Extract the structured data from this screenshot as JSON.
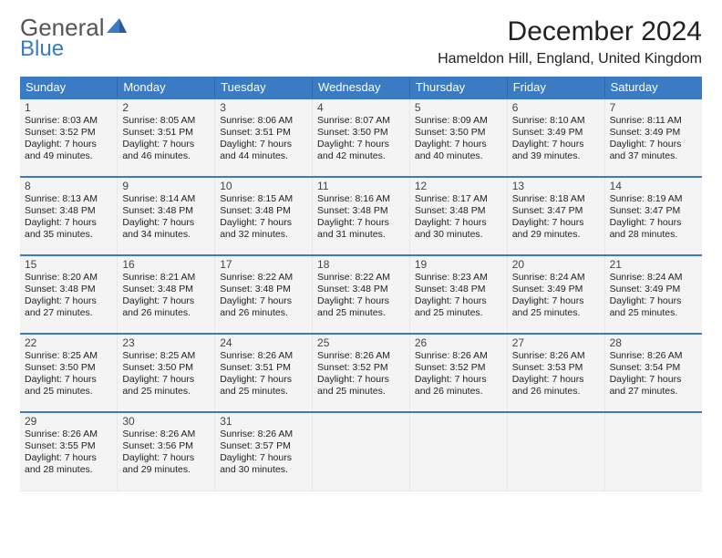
{
  "logo": {
    "general": "General",
    "blue": "Blue"
  },
  "title": "December 2024",
  "location": "Hameldon Hill, England, United Kingdom",
  "day_headers": [
    "Sunday",
    "Monday",
    "Tuesday",
    "Wednesday",
    "Thursday",
    "Friday",
    "Saturday"
  ],
  "colors": {
    "header_bg": "#3a7bc4",
    "header_text": "#ffffff",
    "row_separator": "#3a7bc4",
    "cell_bg": "#f4f4f4",
    "page_bg": "#ffffff",
    "logo_gray": "#555555",
    "logo_blue": "#3a7bc4"
  },
  "typography": {
    "title_fontsize": 30,
    "location_fontsize": 16,
    "header_fontsize": 13,
    "daynum_fontsize": 12,
    "detail_fontsize": 10.5
  },
  "weeks": [
    [
      {
        "n": "1",
        "sr": "Sunrise: 8:03 AM",
        "ss": "Sunset: 3:52 PM",
        "d1": "Daylight: 7 hours",
        "d2": "and 49 minutes."
      },
      {
        "n": "2",
        "sr": "Sunrise: 8:05 AM",
        "ss": "Sunset: 3:51 PM",
        "d1": "Daylight: 7 hours",
        "d2": "and 46 minutes."
      },
      {
        "n": "3",
        "sr": "Sunrise: 8:06 AM",
        "ss": "Sunset: 3:51 PM",
        "d1": "Daylight: 7 hours",
        "d2": "and 44 minutes."
      },
      {
        "n": "4",
        "sr": "Sunrise: 8:07 AM",
        "ss": "Sunset: 3:50 PM",
        "d1": "Daylight: 7 hours",
        "d2": "and 42 minutes."
      },
      {
        "n": "5",
        "sr": "Sunrise: 8:09 AM",
        "ss": "Sunset: 3:50 PM",
        "d1": "Daylight: 7 hours",
        "d2": "and 40 minutes."
      },
      {
        "n": "6",
        "sr": "Sunrise: 8:10 AM",
        "ss": "Sunset: 3:49 PM",
        "d1": "Daylight: 7 hours",
        "d2": "and 39 minutes."
      },
      {
        "n": "7",
        "sr": "Sunrise: 8:11 AM",
        "ss": "Sunset: 3:49 PM",
        "d1": "Daylight: 7 hours",
        "d2": "and 37 minutes."
      }
    ],
    [
      {
        "n": "8",
        "sr": "Sunrise: 8:13 AM",
        "ss": "Sunset: 3:48 PM",
        "d1": "Daylight: 7 hours",
        "d2": "and 35 minutes."
      },
      {
        "n": "9",
        "sr": "Sunrise: 8:14 AM",
        "ss": "Sunset: 3:48 PM",
        "d1": "Daylight: 7 hours",
        "d2": "and 34 minutes."
      },
      {
        "n": "10",
        "sr": "Sunrise: 8:15 AM",
        "ss": "Sunset: 3:48 PM",
        "d1": "Daylight: 7 hours",
        "d2": "and 32 minutes."
      },
      {
        "n": "11",
        "sr": "Sunrise: 8:16 AM",
        "ss": "Sunset: 3:48 PM",
        "d1": "Daylight: 7 hours",
        "d2": "and 31 minutes."
      },
      {
        "n": "12",
        "sr": "Sunrise: 8:17 AM",
        "ss": "Sunset: 3:48 PM",
        "d1": "Daylight: 7 hours",
        "d2": "and 30 minutes."
      },
      {
        "n": "13",
        "sr": "Sunrise: 8:18 AM",
        "ss": "Sunset: 3:47 PM",
        "d1": "Daylight: 7 hours",
        "d2": "and 29 minutes."
      },
      {
        "n": "14",
        "sr": "Sunrise: 8:19 AM",
        "ss": "Sunset: 3:47 PM",
        "d1": "Daylight: 7 hours",
        "d2": "and 28 minutes."
      }
    ],
    [
      {
        "n": "15",
        "sr": "Sunrise: 8:20 AM",
        "ss": "Sunset: 3:48 PM",
        "d1": "Daylight: 7 hours",
        "d2": "and 27 minutes."
      },
      {
        "n": "16",
        "sr": "Sunrise: 8:21 AM",
        "ss": "Sunset: 3:48 PM",
        "d1": "Daylight: 7 hours",
        "d2": "and 26 minutes."
      },
      {
        "n": "17",
        "sr": "Sunrise: 8:22 AM",
        "ss": "Sunset: 3:48 PM",
        "d1": "Daylight: 7 hours",
        "d2": "and 26 minutes."
      },
      {
        "n": "18",
        "sr": "Sunrise: 8:22 AM",
        "ss": "Sunset: 3:48 PM",
        "d1": "Daylight: 7 hours",
        "d2": "and 25 minutes."
      },
      {
        "n": "19",
        "sr": "Sunrise: 8:23 AM",
        "ss": "Sunset: 3:48 PM",
        "d1": "Daylight: 7 hours",
        "d2": "and 25 minutes."
      },
      {
        "n": "20",
        "sr": "Sunrise: 8:24 AM",
        "ss": "Sunset: 3:49 PM",
        "d1": "Daylight: 7 hours",
        "d2": "and 25 minutes."
      },
      {
        "n": "21",
        "sr": "Sunrise: 8:24 AM",
        "ss": "Sunset: 3:49 PM",
        "d1": "Daylight: 7 hours",
        "d2": "and 25 minutes."
      }
    ],
    [
      {
        "n": "22",
        "sr": "Sunrise: 8:25 AM",
        "ss": "Sunset: 3:50 PM",
        "d1": "Daylight: 7 hours",
        "d2": "and 25 minutes."
      },
      {
        "n": "23",
        "sr": "Sunrise: 8:25 AM",
        "ss": "Sunset: 3:50 PM",
        "d1": "Daylight: 7 hours",
        "d2": "and 25 minutes."
      },
      {
        "n": "24",
        "sr": "Sunrise: 8:26 AM",
        "ss": "Sunset: 3:51 PM",
        "d1": "Daylight: 7 hours",
        "d2": "and 25 minutes."
      },
      {
        "n": "25",
        "sr": "Sunrise: 8:26 AM",
        "ss": "Sunset: 3:52 PM",
        "d1": "Daylight: 7 hours",
        "d2": "and 25 minutes."
      },
      {
        "n": "26",
        "sr": "Sunrise: 8:26 AM",
        "ss": "Sunset: 3:52 PM",
        "d1": "Daylight: 7 hours",
        "d2": "and 26 minutes."
      },
      {
        "n": "27",
        "sr": "Sunrise: 8:26 AM",
        "ss": "Sunset: 3:53 PM",
        "d1": "Daylight: 7 hours",
        "d2": "and 26 minutes."
      },
      {
        "n": "28",
        "sr": "Sunrise: 8:26 AM",
        "ss": "Sunset: 3:54 PM",
        "d1": "Daylight: 7 hours",
        "d2": "and 27 minutes."
      }
    ],
    [
      {
        "n": "29",
        "sr": "Sunrise: 8:26 AM",
        "ss": "Sunset: 3:55 PM",
        "d1": "Daylight: 7 hours",
        "d2": "and 28 minutes."
      },
      {
        "n": "30",
        "sr": "Sunrise: 8:26 AM",
        "ss": "Sunset: 3:56 PM",
        "d1": "Daylight: 7 hours",
        "d2": "and 29 minutes."
      },
      {
        "n": "31",
        "sr": "Sunrise: 8:26 AM",
        "ss": "Sunset: 3:57 PM",
        "d1": "Daylight: 7 hours",
        "d2": "and 30 minutes."
      },
      null,
      null,
      null,
      null
    ]
  ]
}
